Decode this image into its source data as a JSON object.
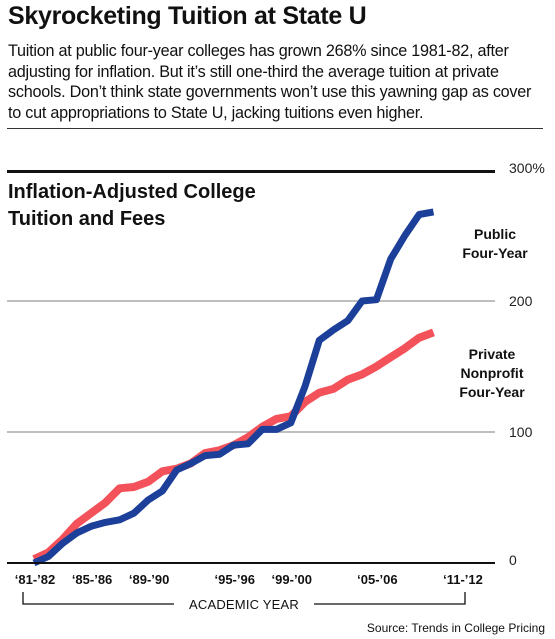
{
  "headline": "Skyrocketing Tuition at State U",
  "intro": "Tuition at public four-year colleges has grown 268% since 1981-82, after adjusting for inflation. But it’s still one-third the average tuition at private schools. Don’t think state governments won’t use this yawning gap as cover to cut appropriations to State U, jacking tuitions even higher.",
  "source": "Source: Trends in College Pricing",
  "colors": {
    "public": "#1c3f99",
    "private": "#f4525a",
    "grid": "#a9a9a9"
  },
  "chart_data": {
    "type": "line",
    "title_lines": [
      "Inflation-Adjusted College",
      "Tuition and Fees"
    ],
    "xlabel": "ACADEMIC YEAR",
    "ylim": [
      0,
      300
    ],
    "yticks": [
      {
        "value": 0,
        "label": "0"
      },
      {
        "value": 100,
        "label": "100"
      },
      {
        "value": 200,
        "label": "200"
      },
      {
        "value": 300,
        "label": "300%"
      }
    ],
    "xticks": [
      {
        "year": 1981,
        "label": "‘81-’82"
      },
      {
        "year": 1985,
        "label": "‘85-’86"
      },
      {
        "year": 1989,
        "label": "‘89-’90"
      },
      {
        "year": 1995,
        "label": "‘95-’96"
      },
      {
        "year": 1999,
        "label": "‘99-’00"
      },
      {
        "year": 2005,
        "label": "‘05-’06"
      },
      {
        "year": 2011,
        "label": "‘11-’12"
      }
    ],
    "series": [
      {
        "key": "public",
        "name_lines": [
          "Public",
          "Four-Year"
        ],
        "points": [
          [
            1981,
            0
          ],
          [
            1982,
            5
          ],
          [
            1983,
            15
          ],
          [
            1984,
            23
          ],
          [
            1985,
            28
          ],
          [
            1986,
            31
          ],
          [
            1987,
            33
          ],
          [
            1988,
            38
          ],
          [
            1989,
            48
          ],
          [
            1990,
            55
          ],
          [
            1991,
            71
          ],
          [
            1992,
            76
          ],
          [
            1993,
            82
          ],
          [
            1994,
            83
          ],
          [
            1995,
            90
          ],
          [
            1996,
            91
          ],
          [
            1997,
            102
          ],
          [
            1998,
            102
          ],
          [
            1999,
            107
          ],
          [
            2000,
            135
          ],
          [
            2001,
            170
          ],
          [
            2002,
            178
          ],
          [
            2003,
            185
          ],
          [
            2004,
            200
          ],
          [
            2005,
            201
          ],
          [
            2006,
            232
          ],
          [
            2007,
            250
          ],
          [
            2008,
            266
          ],
          [
            2009,
            268
          ]
        ]
      },
      {
        "key": "private",
        "name_lines": [
          "Private",
          "Nonprofit",
          "Four-Year"
        ],
        "points": [
          [
            1981,
            3
          ],
          [
            1982,
            8
          ],
          [
            1983,
            18
          ],
          [
            1984,
            30
          ],
          [
            1985,
            38
          ],
          [
            1986,
            46
          ],
          [
            1987,
            57
          ],
          [
            1988,
            58
          ],
          [
            1989,
            62
          ],
          [
            1990,
            70
          ],
          [
            1991,
            72
          ],
          [
            1992,
            76
          ],
          [
            1993,
            84
          ],
          [
            1994,
            86
          ],
          [
            1995,
            90
          ],
          [
            1996,
            96
          ],
          [
            1997,
            104
          ],
          [
            1998,
            110
          ],
          [
            1999,
            112
          ],
          [
            2000,
            123
          ],
          [
            2001,
            130
          ],
          [
            2002,
            133
          ],
          [
            2003,
            140
          ],
          [
            2004,
            144
          ],
          [
            2005,
            150
          ],
          [
            2006,
            157
          ],
          [
            2007,
            164
          ],
          [
            2008,
            172
          ],
          [
            2009,
            176
          ]
        ]
      }
    ]
  }
}
